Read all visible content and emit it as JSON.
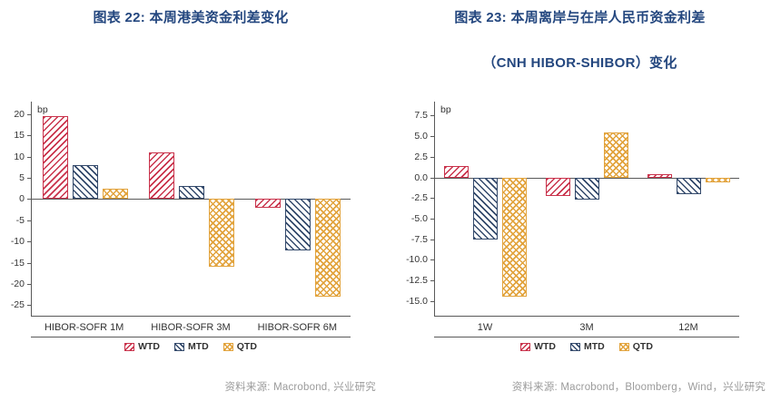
{
  "charts": [
    {
      "title": "图表 22: 本周港美资金利差变化",
      "unit": "bp",
      "source_label": "资料来源: Macrobond, 兴业研究"
    },
    {
      "title": "图表 23: 本周离岸与在岸人民币资金利差",
      "title_line2": "（CNH HIBOR-SHIBOR）变化",
      "unit": "bp",
      "source_label": "资料来源: Macrobond，Bloomberg，Wind，兴业研究"
    }
  ],
  "colors": {
    "wtd": "#c9324b",
    "mtd": "#33496b",
    "qtd": "#e2a33c",
    "title": "#24477f",
    "source": "#9b9b9b",
    "axis": "#595959",
    "tick_text": "#333333"
  },
  "hatches": {
    "WTD": "/",
    "MTD": "\\",
    "QTD": "x"
  },
  "chart_data": [
    {
      "type": "bar",
      "title": "图表 22: 本周港美资金利差变化",
      "categories": [
        "HIBOR-SOFR 1M",
        "HIBOR-SOFR 3M",
        "HIBOR-SOFR 6M"
      ],
      "series": [
        {
          "name": "WTD",
          "values": [
            19.5,
            11.0,
            -2.0
          ]
        },
        {
          "name": "MTD",
          "values": [
            8.0,
            3.0,
            -12.0
          ]
        },
        {
          "name": "QTD",
          "values": [
            2.5,
            -16.0,
            -23.0
          ]
        }
      ],
      "xlabel": "",
      "ylabel": "bp",
      "ylim": [
        -27.5,
        23
      ],
      "yticks": [
        "20",
        "15",
        "10",
        "5",
        "0",
        "-5",
        "-10",
        "-15",
        "-20",
        "-25"
      ],
      "grid": false,
      "legend_position": "bottom"
    },
    {
      "type": "bar",
      "title": "图表 23: 本周离岸与在岸人民币资金利差（CNH HIBOR-SHIBOR）变化",
      "categories": [
        "1W",
        "3M",
        "12M"
      ],
      "series": [
        {
          "name": "WTD",
          "values": [
            1.4,
            -2.3,
            0.4
          ]
        },
        {
          "name": "MTD",
          "values": [
            -7.5,
            -2.7,
            -2.0
          ]
        },
        {
          "name": "QTD",
          "values": [
            -14.5,
            5.5,
            -0.6
          ]
        }
      ],
      "xlabel": "",
      "ylabel": "bp",
      "ylim": [
        -16.8,
        9.2
      ],
      "yticks": [
        "7.5",
        "5.0",
        "2.5",
        "0.0",
        "-2.5",
        "-5.0",
        "-7.5",
        "-10.0",
        "-12.5",
        "-15.0"
      ],
      "grid": false,
      "legend_position": "bottom"
    }
  ]
}
